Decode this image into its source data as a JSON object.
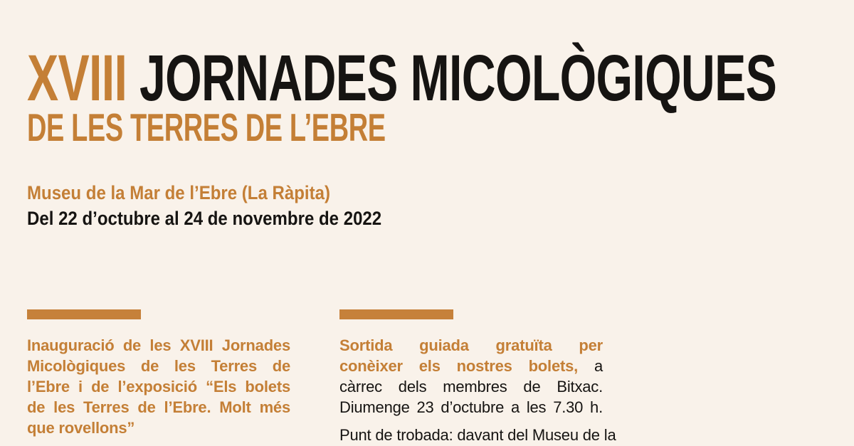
{
  "colors": {
    "background": "#f9f2ea",
    "accent": "#c47f36",
    "text": "#161412"
  },
  "header": {
    "title_line1_accent": "XVIII",
    "title_line1_rest": "JORNADES MICOLÒGIQUES",
    "title_line2": "DE LES TERRES DE L’EBRE",
    "venue": "Museu de la Mar de l’Ebre (La Ràpita)",
    "dates": "Del 22 d’octubre al 24 de novembre de 2022"
  },
  "columns": {
    "left": {
      "lines": [
        "Inauguració de les XVIII Jornades",
        "Micològiques de les Terres de",
        "l’Ebre i de l’exposició “Els bolets",
        "de les Terres de l’Ebre. Molt més",
        "que rovellons”"
      ]
    },
    "right": {
      "line1_accent": "Sortida guiada gratuïta per",
      "line2_accent": "conèixer els nostres bolets,",
      "line2_rest": "a",
      "line3": "càrrec dels membres de Bitxac.",
      "line4": "Diumenge 23 d’octubre a les 7.30 h.",
      "para2_line1": "Punt de trobada: davant del Museu de la"
    }
  }
}
